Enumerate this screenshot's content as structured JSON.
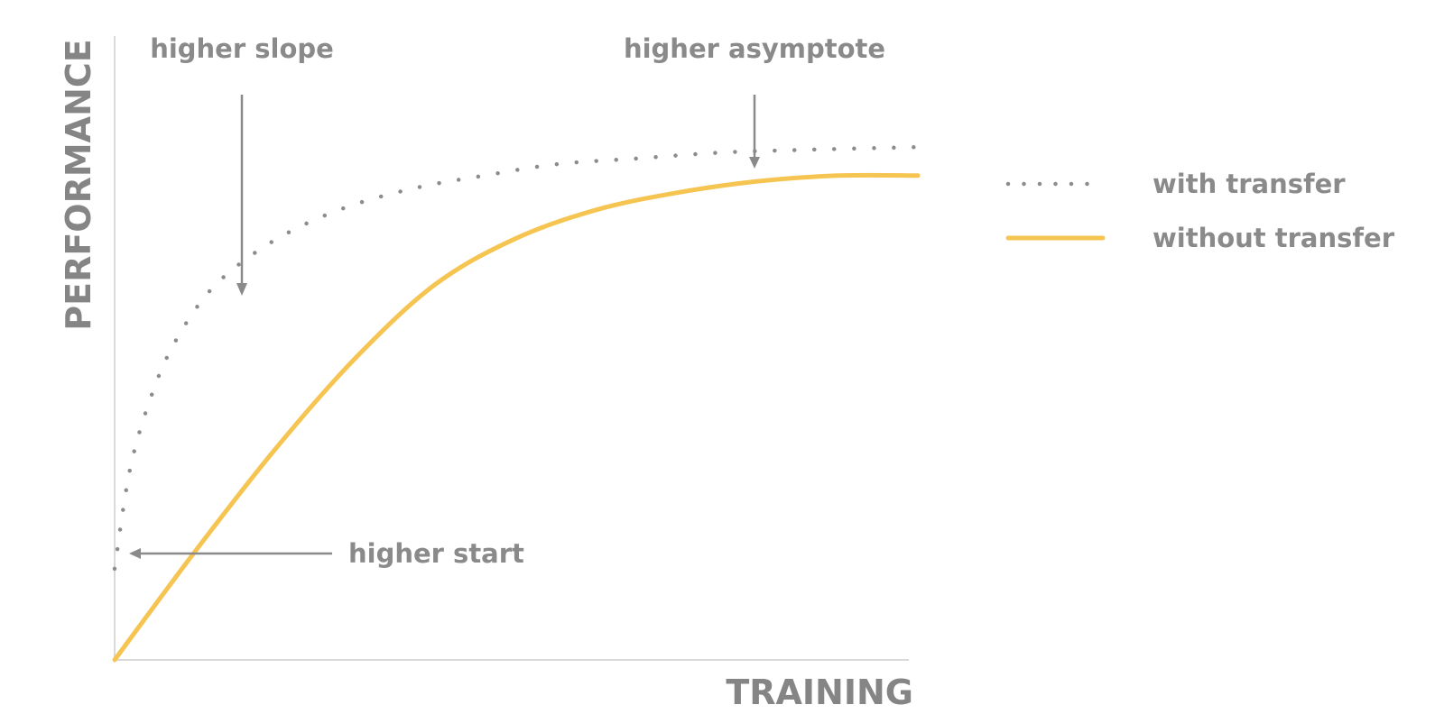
{
  "chart_data": {
    "type": "line",
    "xlabel": "TRAINING",
    "ylabel": "PERFORMANCE",
    "xlim": [
      0,
      1
    ],
    "ylim": [
      0,
      1
    ],
    "grid": false,
    "legend": "right",
    "series": [
      {
        "name": "with transfer",
        "style": "dotted",
        "color": "#8c8c8c",
        "x": [
          0,
          0.02,
          0.05,
          0.08,
          0.12,
          0.17,
          0.23,
          0.3,
          0.38,
          0.46,
          0.55,
          0.65,
          0.75,
          0.85,
          1.0
        ],
        "y": [
          0.16,
          0.34,
          0.48,
          0.57,
          0.65,
          0.71,
          0.76,
          0.8,
          0.83,
          0.85,
          0.87,
          0.88,
          0.89,
          0.895,
          0.9
        ]
      },
      {
        "name": "without transfer",
        "style": "solid",
        "color": "#f5c451",
        "x": [
          0,
          0.1,
          0.2,
          0.3,
          0.4,
          0.5,
          0.6,
          0.7,
          0.8,
          0.9,
          1.0
        ],
        "y": [
          0,
          0.19,
          0.37,
          0.53,
          0.66,
          0.74,
          0.79,
          0.82,
          0.84,
          0.85,
          0.85
        ]
      }
    ],
    "annotations": [
      {
        "text": "higher slope",
        "target_x": 0.16,
        "target_y": 0.59
      },
      {
        "text": "higher asymptote",
        "target_x": 0.8,
        "target_y": 0.79
      },
      {
        "text": "higher start",
        "target_x": 0.02,
        "target_y": 0.18
      }
    ]
  }
}
